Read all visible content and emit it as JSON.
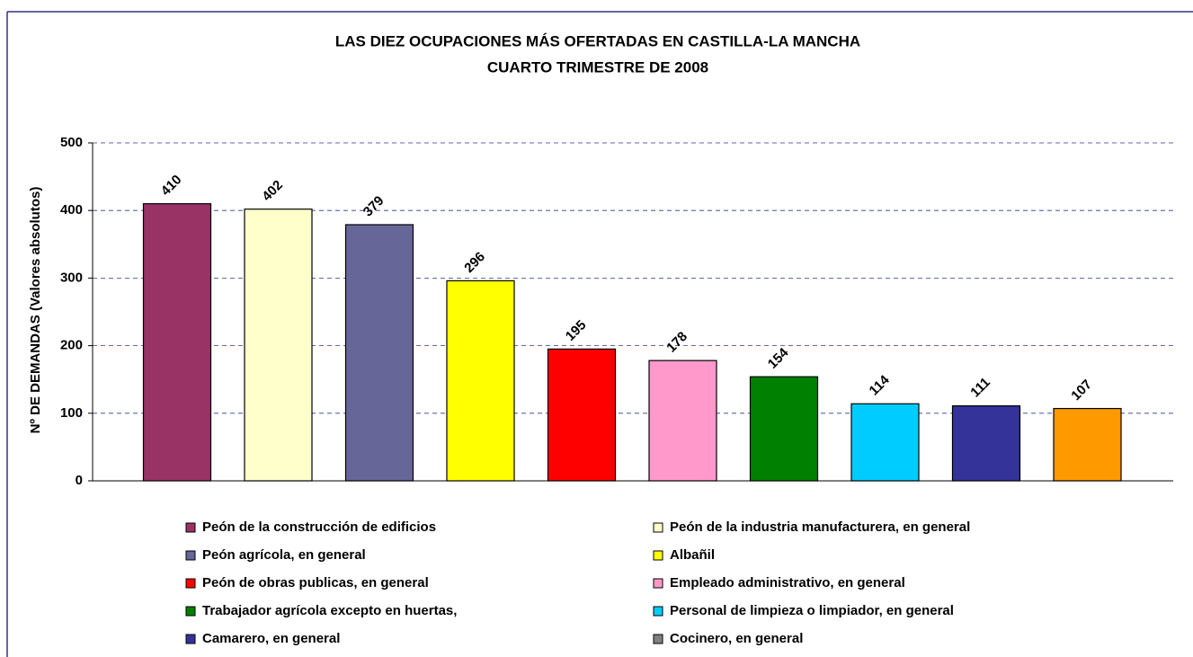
{
  "chart_data": {
    "type": "bar",
    "title": [
      "LAS DIEZ OCUPACIONES MÁS OFERTADAS EN CASTILLA-LA MANCHA",
      "CUARTO TRIMESTRE DE 2008"
    ],
    "y_label": "Nº DE DEMANDAS (Valores absolutos)",
    "categories": [
      "Peón de la construcción de edificios",
      "Peón de la industria manufacturera, en general",
      "Peón agrícola, en general",
      "Albañil",
      "Peón de obras publicas, en general",
      "Empleado administrativo, en general",
      "Trabajador agrícola excepto en huertas,",
      "Personal de limpieza o limpiador, en general",
      "Camarero, en general",
      "Cocinero, en general"
    ],
    "values": [
      410,
      402,
      379,
      296,
      195,
      178,
      154,
      114,
      111,
      107
    ],
    "colors": [
      "#993366",
      "#ffffcc",
      "#666699",
      "#ffff00",
      "#ff0000",
      "#ff99cc",
      "#008000",
      "#00ccff",
      "#333399",
      "#ff9900"
    ],
    "legend_colors": [
      "#993366",
      "#ffffcc",
      "#666699",
      "#ffff00",
      "#ff0000",
      "#ff99cc",
      "#008000",
      "#00ccff",
      "#333399",
      "#808080"
    ],
    "ylim": [
      0,
      500
    ],
    "yticks": [
      0,
      100,
      200,
      300,
      400,
      500
    ],
    "grid": true,
    "legend": "bottom"
  }
}
